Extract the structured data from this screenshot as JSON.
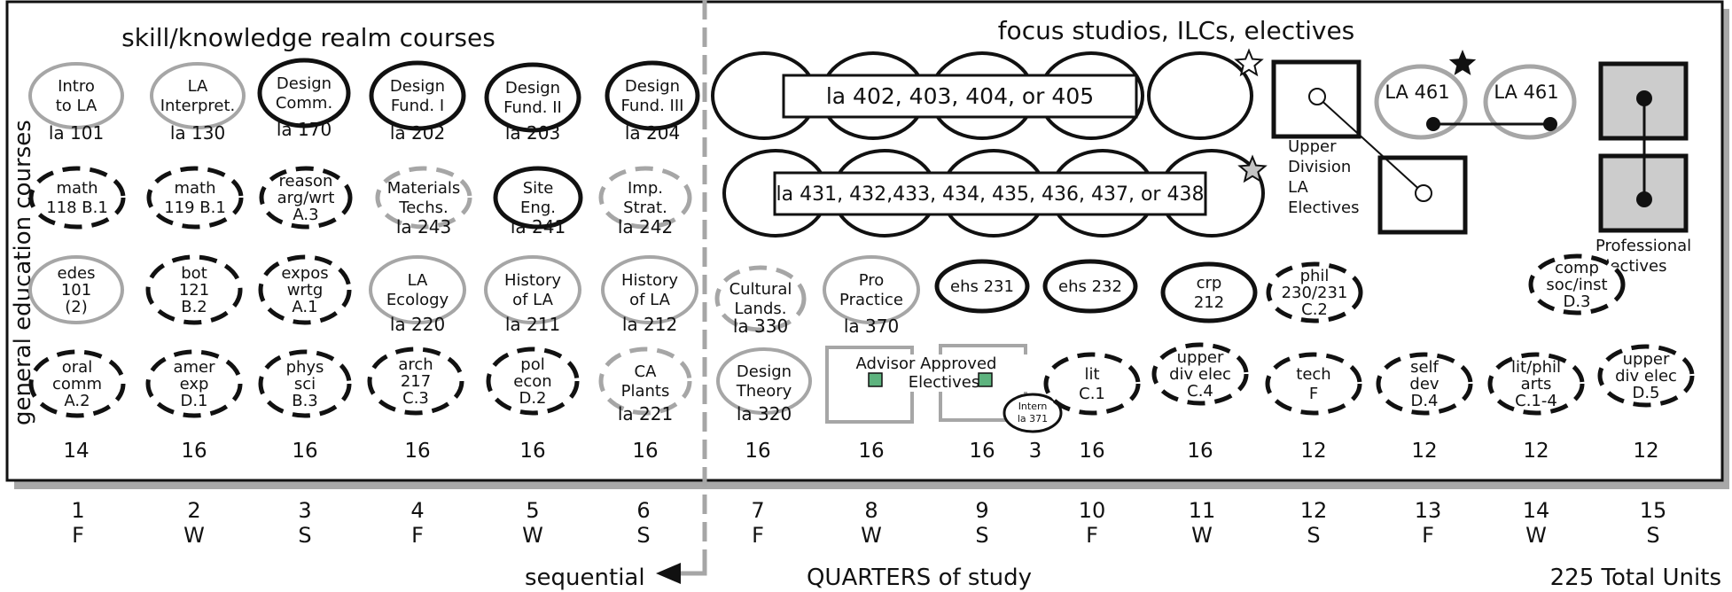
{
  "headings": {
    "left": "skill/knowledge realm courses",
    "right": "focus studios, ILCs, electives",
    "side": "general education courses",
    "sequential": "sequential",
    "quarters": "QUARTERS of study",
    "total": "225 Total Units"
  },
  "style_colors": {
    "black": "#111111",
    "gray": "#a6a6a6",
    "star_gray": "#c4c4c4",
    "green": "#5db37e",
    "box_fill": "#cccccc"
  },
  "courses": [
    {
      "id": "intro-la",
      "lines": [
        "Intro",
        "to LA"
      ],
      "code": "la 101",
      "style": "gray-solid"
    },
    {
      "id": "la-interpret",
      "lines": [
        "LA",
        "Interpret."
      ],
      "code": "la 130",
      "style": "gray-solid"
    },
    {
      "id": "design-comm",
      "lines": [
        "Design",
        "Comm."
      ],
      "code": "la 170",
      "style": "black-solid"
    },
    {
      "id": "design-fund-1",
      "lines": [
        "Design",
        "Fund. I"
      ],
      "code": "la 202",
      "style": "black-solid"
    },
    {
      "id": "design-fund-2",
      "lines": [
        "Design",
        "Fund. II"
      ],
      "code": "la 203",
      "style": "black-solid"
    },
    {
      "id": "design-fund-3",
      "lines": [
        "Design",
        "Fund. III"
      ],
      "code": "la 204",
      "style": "black-solid"
    },
    {
      "id": "math-118",
      "lines": [
        "math",
        "118 B.1"
      ],
      "code": "",
      "style": "black-dashed"
    },
    {
      "id": "math-119",
      "lines": [
        "math",
        "119 B.1"
      ],
      "code": "",
      "style": "black-dashed"
    },
    {
      "id": "reason-arg",
      "lines": [
        "reason",
        "arg/wrt",
        "A.3"
      ],
      "code": "",
      "style": "black-dashed"
    },
    {
      "id": "materials-techs",
      "lines": [
        "Materials",
        "Techs."
      ],
      "code": "la 243",
      "style": "gray-dashed"
    },
    {
      "id": "site-eng",
      "lines": [
        "Site",
        "Eng."
      ],
      "code": "la 241",
      "style": "black-solid"
    },
    {
      "id": "imp-strat",
      "lines": [
        "Imp.",
        "Strat."
      ],
      "code": "la 242",
      "style": "gray-dashed"
    },
    {
      "id": "edes-101",
      "lines": [
        "edes",
        "101",
        "(2)"
      ],
      "code": "",
      "style": "gray-solid"
    },
    {
      "id": "bot-121",
      "lines": [
        "bot",
        "121",
        "B.2"
      ],
      "code": "",
      "style": "black-dashed"
    },
    {
      "id": "expos-wrtg",
      "lines": [
        "expos",
        "wrtg",
        "A.1"
      ],
      "code": "",
      "style": "black-dashed"
    },
    {
      "id": "la-ecology",
      "lines": [
        "LA",
        "Ecology"
      ],
      "code": "la 220",
      "style": "gray-solid"
    },
    {
      "id": "history-la-211",
      "lines": [
        "History",
        "of LA"
      ],
      "code": "la 211",
      "style": "gray-solid"
    },
    {
      "id": "history-la-212",
      "lines": [
        "History",
        "of LA"
      ],
      "code": "la 212",
      "style": "gray-solid"
    },
    {
      "id": "cultural-lands",
      "lines": [
        "Cultural",
        "Lands."
      ],
      "code": "la 330",
      "style": "gray-dashed"
    },
    {
      "id": "pro-practice",
      "lines": [
        "Pro",
        "Practice"
      ],
      "code": "la 370",
      "style": "gray-solid"
    },
    {
      "id": "ehs-231",
      "lines": [
        "ehs 231"
      ],
      "code": "",
      "style": "black-solid"
    },
    {
      "id": "ehs-232",
      "lines": [
        "ehs 232"
      ],
      "code": "",
      "style": "black-solid"
    },
    {
      "id": "crp-212",
      "lines": [
        "crp",
        "212"
      ],
      "code": "",
      "style": "black-solid"
    },
    {
      "id": "phil-230",
      "lines": [
        "phil",
        "230/231",
        "C.2"
      ],
      "code": "",
      "style": "black-dashed"
    },
    {
      "id": "comp-soc",
      "lines": [
        "comp",
        "soc/inst",
        "D.3"
      ],
      "code": "",
      "style": "black-dashed"
    },
    {
      "id": "oral-comm",
      "lines": [
        "oral",
        "comm",
        "A.2"
      ],
      "code": "",
      "style": "black-dashed"
    },
    {
      "id": "amer-exp",
      "lines": [
        "amer",
        "exp",
        "D.1"
      ],
      "code": "",
      "style": "black-dashed"
    },
    {
      "id": "phys-sci",
      "lines": [
        "phys",
        "sci",
        "B.3"
      ],
      "code": "",
      "style": "black-dashed"
    },
    {
      "id": "arch-217",
      "lines": [
        "arch",
        "217",
        "C.3"
      ],
      "code": "",
      "style": "black-dashed"
    },
    {
      "id": "pol-econ",
      "lines": [
        "pol",
        "econ",
        "D.2"
      ],
      "code": "",
      "style": "black-dashed"
    },
    {
      "id": "ca-plants",
      "lines": [
        "CA",
        "Plants"
      ],
      "code": "la 221",
      "style": "gray-dashed"
    },
    {
      "id": "design-theory",
      "lines": [
        "Design",
        "Theory"
      ],
      "code": "la 320",
      "style": "gray-solid"
    },
    {
      "id": "lit",
      "lines": [
        "lit",
        "C.1"
      ],
      "code": "",
      "style": "black-dashed"
    },
    {
      "id": "upper-div-c4",
      "lines": [
        "upper",
        "div elec",
        "C.4"
      ],
      "code": "",
      "style": "black-dashed"
    },
    {
      "id": "tech-f",
      "lines": [
        "tech",
        "F"
      ],
      "code": "",
      "style": "black-dashed"
    },
    {
      "id": "self-dev",
      "lines": [
        "self",
        "dev",
        "D.4"
      ],
      "code": "",
      "style": "black-dashed"
    },
    {
      "id": "lit-phil-arts",
      "lines": [
        "lit/phil",
        "arts",
        "C.1-4"
      ],
      "code": "",
      "style": "black-dashed"
    },
    {
      "id": "upper-div-d5",
      "lines": [
        "upper",
        "div elec",
        "D.5"
      ],
      "code": "",
      "style": "black-dashed"
    }
  ],
  "studios": {
    "row1": "la 402, 403, 404, or 405",
    "row2": "la 431, 432,433, 434, 435, 436, 437, or 438"
  },
  "la461": [
    "LA 461",
    "LA 461"
  ],
  "upper_division_label": [
    "Upper",
    "Division",
    "LA",
    "Electives"
  ],
  "professional_label": [
    "Professional",
    "Electives"
  ],
  "advisor_label": [
    "Advisor Approved",
    "Electives"
  ],
  "intern": [
    "Intern",
    "la 371"
  ],
  "units": [
    "14",
    "16",
    "16",
    "16",
    "16",
    "16",
    "16",
    "16",
    "16",
    "3",
    "16",
    "16",
    "12",
    "12",
    "12",
    "12"
  ],
  "quarters": [
    {
      "num": "1",
      "season": "F"
    },
    {
      "num": "2",
      "season": "W"
    },
    {
      "num": "3",
      "season": "S"
    },
    {
      "num": "4",
      "season": "F"
    },
    {
      "num": "5",
      "season": "W"
    },
    {
      "num": "6",
      "season": "S"
    },
    {
      "num": "7",
      "season": "F"
    },
    {
      "num": "8",
      "season": "W"
    },
    {
      "num": "9",
      "season": "S"
    },
    {
      "num": "10",
      "season": "F"
    },
    {
      "num": "11",
      "season": "W"
    },
    {
      "num": "12",
      "season": "S"
    },
    {
      "num": "13",
      "season": "F"
    },
    {
      "num": "14",
      "season": "W"
    },
    {
      "num": "15",
      "season": "S"
    }
  ]
}
